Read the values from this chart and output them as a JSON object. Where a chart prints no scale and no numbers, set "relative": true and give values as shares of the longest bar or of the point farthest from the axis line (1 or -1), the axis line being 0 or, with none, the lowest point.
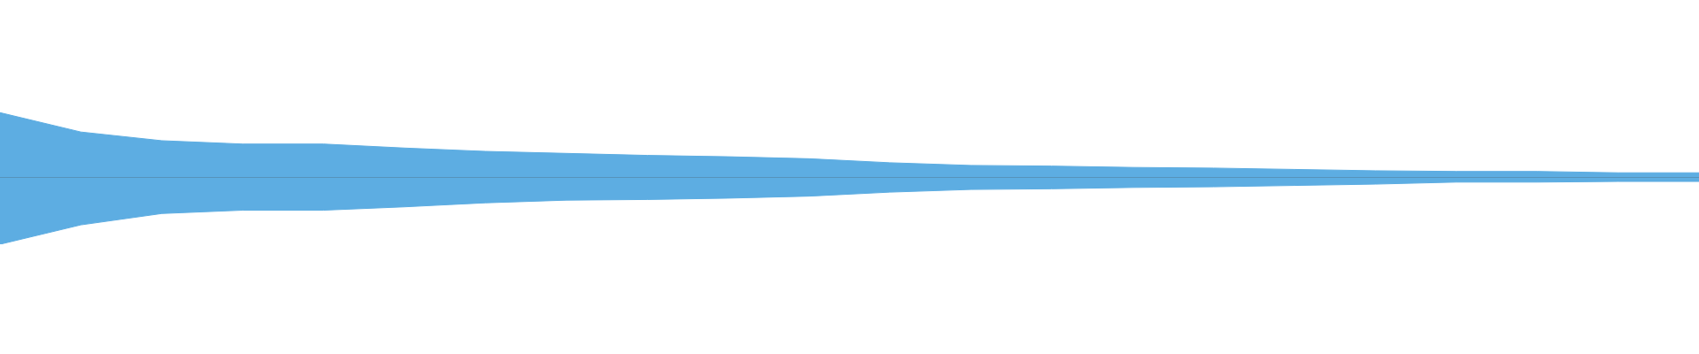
{
  "chart_data": {
    "type": "area",
    "relative": true,
    "categories": [
      null,
      null,
      null,
      null,
      null,
      null,
      null,
      null,
      null,
      null,
      null,
      null,
      null,
      null,
      null,
      null,
      null,
      null,
      null,
      null,
      null,
      null
    ],
    "series": [
      {
        "color": "#5dade2",
        "values": [
          0.97,
          0.68,
          0.55,
          0.5,
          0.5,
          0.44,
          0.39,
          0.36,
          0.33,
          0.31,
          0.28,
          0.22,
          0.18,
          0.17,
          0.15,
          0.14,
          0.12,
          0.1,
          0.09,
          0.09,
          0.07,
          0.07
        ]
      },
      {
        "color": "#5dade2",
        "values": [
          -1,
          -0.71,
          -0.54,
          -0.49,
          -0.49,
          -0.44,
          -0.38,
          -0.34,
          -0.33,
          -0.31,
          -0.28,
          -0.22,
          -0.18,
          -0.17,
          -0.15,
          -0.14,
          -0.12,
          -0.1,
          -0.07,
          -0.07,
          -0.06,
          -0.06
        ]
      }
    ]
  }
}
